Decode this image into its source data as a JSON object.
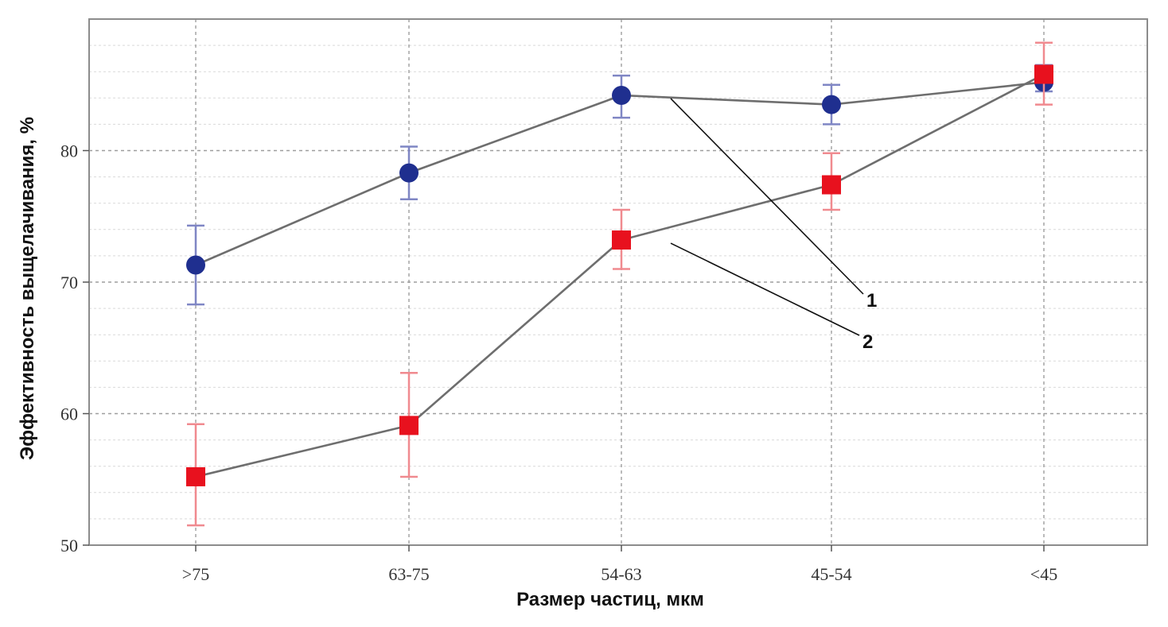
{
  "chart_data": {
    "type": "line",
    "title": "",
    "xlabel": "Размер частиц, мкм",
    "ylabel": "Эффективность выщелачивания, %",
    "categories": [
      ">75",
      "63-75",
      "54-63",
      "45-54",
      "<45"
    ],
    "ylim": [
      50,
      90
    ],
    "yticks": [
      "50",
      "60",
      "70",
      "80"
    ],
    "grid": true,
    "legend": "none",
    "series": [
      {
        "values": [
          71.3,
          78.3,
          84.2,
          83.5,
          85.2
        ],
        "err_low": [
          68.3,
          76.3,
          82.5,
          82.0,
          84.5
        ],
        "err_high": [
          74.3,
          80.3,
          85.7,
          85.0,
          86.5
        ],
        "marker": "circle",
        "color": "#1f2f8f",
        "errcolor": "#7f86c4"
      },
      {
        "values": [
          55.2,
          59.1,
          73.2,
          77.4,
          85.8
        ],
        "err_low": [
          51.5,
          55.2,
          71.0,
          75.5,
          83.5
        ],
        "err_high": [
          59.2,
          63.1,
          75.5,
          79.8,
          88.2
        ],
        "marker": "square",
        "color": "#e8111e",
        "errcolor": "#f08a8f"
      }
    ],
    "annotations": [
      {
        "label": "1",
        "series": 0,
        "point": 2
      },
      {
        "label": "2",
        "series": 1,
        "point": 2
      }
    ]
  }
}
